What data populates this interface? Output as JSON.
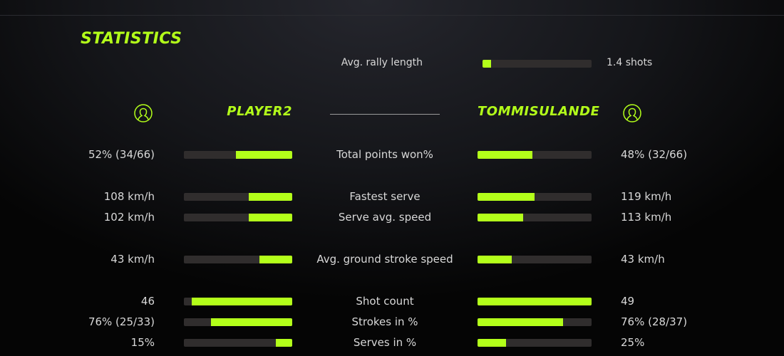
{
  "title": "STATISTICS",
  "accent": "#b3ff1a",
  "rally": {
    "label": "Avg. rally length",
    "value": "1.4 shots",
    "fill": 0.08
  },
  "players": {
    "left": {
      "name": "PLAYER2",
      "icon": "user-circle-icon"
    },
    "right": {
      "name": "TOMMISULANDE",
      "icon": "user-circle-icon"
    }
  },
  "stats": [
    {
      "label": "Total points won%",
      "left": "52% (34/66)",
      "right": "48% (32/66)",
      "left_fill": 0.52,
      "right_fill": 0.48
    },
    {
      "label": "Fastest serve",
      "left": "108 km/h",
      "right": "119 km/h",
      "left_fill": 0.4,
      "right_fill": 0.5
    },
    {
      "label": "Serve avg. speed",
      "left": "102 km/h",
      "right": "113 km/h",
      "left_fill": 0.4,
      "right_fill": 0.4
    },
    {
      "label": "Avg. ground stroke speed",
      "left": "43 km/h",
      "right": "43 km/h",
      "left_fill": 0.3,
      "right_fill": 0.3
    },
    {
      "label": "Shot count",
      "left": "46",
      "right": "49",
      "left_fill": 0.93,
      "right_fill": 1.0
    },
    {
      "label": "Strokes in %",
      "left": "76% (25/33)",
      "right": "76% (28/37)",
      "left_fill": 0.75,
      "right_fill": 0.75
    },
    {
      "label": "Serves in %",
      "left": "15%",
      "right": "25%",
      "left_fill": 0.15,
      "right_fill": 0.25
    }
  ]
}
